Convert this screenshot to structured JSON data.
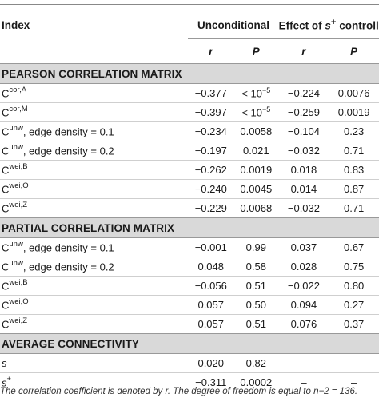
{
  "header": {
    "index_label": "Index",
    "unconditional_label": "Unconditional",
    "controlled_label_pre": "Effect of ",
    "controlled_label_sym": "s",
    "controlled_label_sup": "+",
    "controlled_label_post": " controlled",
    "col_r": "r",
    "col_p": "P"
  },
  "sections": [
    {
      "title": "PEARSON CORRELATION MATRIX",
      "rows": [
        {
          "base": "C",
          "sup": "cor,A",
          "suffix": "",
          "r1": "−0.377",
          "p1_pre": "< 10",
          "p1_sup": "−5",
          "r2": "−0.224",
          "p2": "0.0076"
        },
        {
          "base": "C",
          "sup": "cor,M",
          "suffix": "",
          "r1": "−0.397",
          "p1_pre": "< 10",
          "p1_sup": "−5",
          "r2": "−0.259",
          "p2": "0.0019"
        },
        {
          "base": "C",
          "sup": "unw",
          "suffix": ", edge density = 0.1",
          "r1": "−0.234",
          "p1_pre": "0.0058",
          "p1_sup": "",
          "r2": "−0.104",
          "p2": "0.23"
        },
        {
          "base": "C",
          "sup": "unw",
          "suffix": ", edge density = 0.2",
          "r1": "−0.197",
          "p1_pre": "0.021",
          "p1_sup": "",
          "r2": "−0.032",
          "p2": "0.71"
        },
        {
          "base": "C",
          "sup": "wei,B",
          "suffix": "",
          "r1": "−0.262",
          "p1_pre": "0.0019",
          "p1_sup": "",
          "r2": "0.018",
          "p2": "0.83"
        },
        {
          "base": "C",
          "sup": "wei,O",
          "suffix": "",
          "r1": "−0.240",
          "p1_pre": "0.0045",
          "p1_sup": "",
          "r2": "0.014",
          "p2": "0.87"
        },
        {
          "base": "C",
          "sup": "wei,Z",
          "suffix": "",
          "r1": "−0.229",
          "p1_pre": "0.0068",
          "p1_sup": "",
          "r2": "−0.032",
          "p2": "0.71"
        }
      ]
    },
    {
      "title": "PARTIAL CORRELATION MATRIX",
      "rows": [
        {
          "base": "C",
          "sup": "unw",
          "suffix": ", edge density = 0.1",
          "r1": "−0.001",
          "p1_pre": "0.99",
          "p1_sup": "",
          "r2": "0.037",
          "p2": "0.67"
        },
        {
          "base": "C",
          "sup": "unw",
          "suffix": ", edge density = 0.2",
          "r1": "0.048",
          "p1_pre": "0.58",
          "p1_sup": "",
          "r2": "0.028",
          "p2": "0.75"
        },
        {
          "base": "C",
          "sup": "wei,B",
          "suffix": "",
          "r1": "−0.056",
          "p1_pre": "0.51",
          "p1_sup": "",
          "r2": "−0.022",
          "p2": "0.80"
        },
        {
          "base": "C",
          "sup": "wei,O",
          "suffix": "",
          "r1": "0.057",
          "p1_pre": "0.50",
          "p1_sup": "",
          "r2": "0.094",
          "p2": "0.27"
        },
        {
          "base": "C",
          "sup": "wei,Z",
          "suffix": "",
          "r1": "0.057",
          "p1_pre": "0.51",
          "p1_sup": "",
          "r2": "0.076",
          "p2": "0.37"
        }
      ]
    },
    {
      "title": "AVERAGE CONNECTIVITY",
      "rows": [
        {
          "base": "s",
          "sup": "",
          "suffix": "",
          "r1": "0.020",
          "p1_pre": "0.82",
          "p1_sup": "",
          "r2": "–",
          "p2": "–"
        },
        {
          "base": "s",
          "sup": "+",
          "suffix": "",
          "r1": "−0.311",
          "p1_pre": "0.0002",
          "p1_sup": "",
          "r2": "–",
          "p2": "–"
        }
      ]
    }
  ],
  "footnote": "The correlation coefficient is denoted by r. The degree of freedom is equal to n−2 = 136."
}
